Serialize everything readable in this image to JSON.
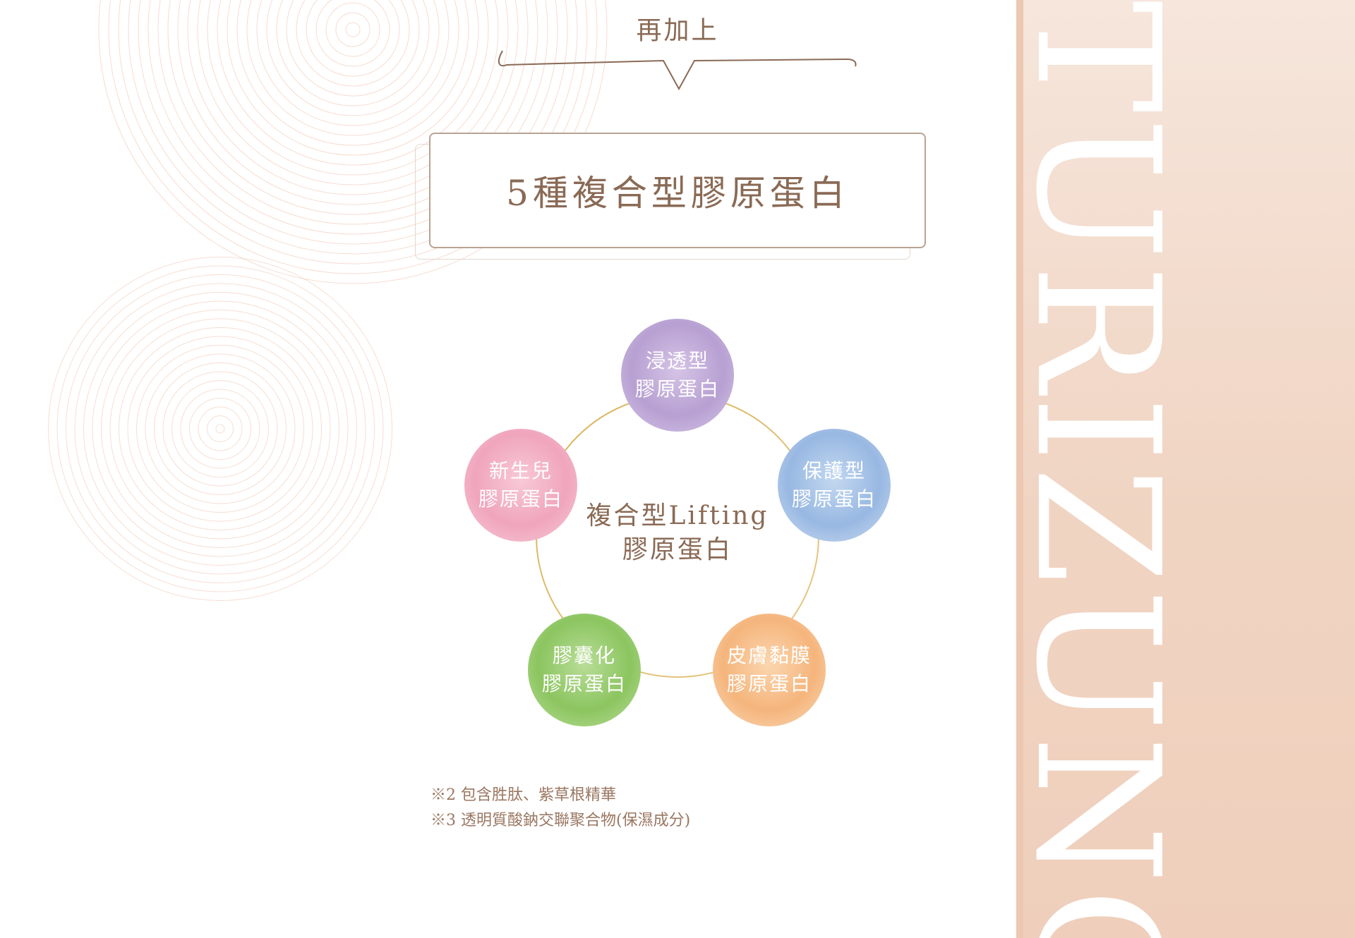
{
  "intro": {
    "text": "再加上"
  },
  "title": {
    "text": "5種複合型膠原蛋白"
  },
  "diagram": {
    "center": {
      "line1": "複合型Lifting",
      "line2": "膠原蛋白"
    },
    "nodes": [
      {
        "line1": "浸透型",
        "line2": "膠原蛋白",
        "color": "#b7a0d2"
      },
      {
        "line1": "保護型",
        "line2": "膠原蛋白",
        "color": "#98b8e2"
      },
      {
        "line1": "皮膚黏膜",
        "line2": "膠原蛋白",
        "color": "#f5b57c"
      },
      {
        "line1": "膠囊化",
        "line2": "膠原蛋白",
        "color": "#8cc560"
      },
      {
        "line1": "新生兒",
        "line2": "膠原蛋白",
        "color": "#f0a5bd"
      }
    ]
  },
  "notes": [
    "※2 包含胜肽、紫草根精華",
    "※3 透明質酸鈉交聯聚合物(保濕成分)"
  ],
  "side_panel": {
    "text": "TURIZUNG"
  },
  "colors": {
    "accent": "#8a6a55",
    "ring": "#d4a84a",
    "panel": "#f0d4c2"
  }
}
